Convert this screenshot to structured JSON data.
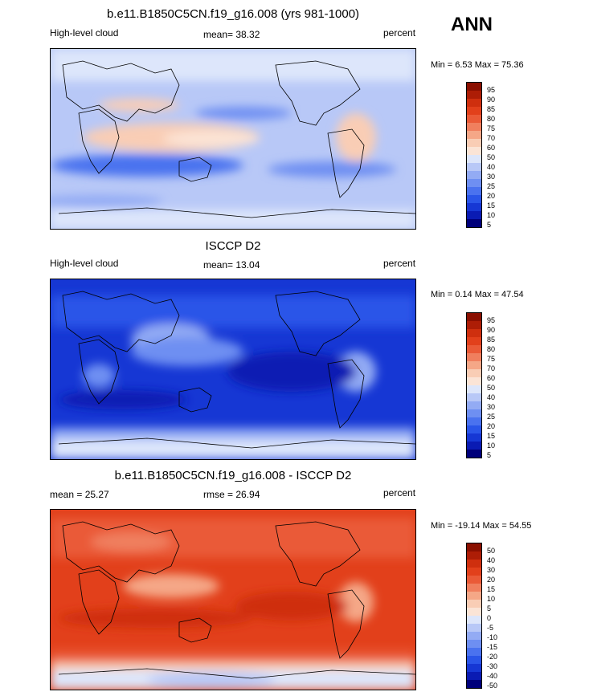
{
  "season": "ANN",
  "colors": {
    "abs_palette": [
      "#00007a",
      "#0a1bb3",
      "#1637d4",
      "#2a55e8",
      "#4a72ef",
      "#6e8ff2",
      "#93abf4",
      "#b8c8f7",
      "#dde6fb",
      "#fbe4d6",
      "#f9cdb5",
      "#f5a787",
      "#f07f5e",
      "#ea5a37",
      "#e2401b",
      "#cf2f0e",
      "#ad1d06",
      "#8a0f00"
    ],
    "diff_palette": [
      "#00007a",
      "#0a1bb3",
      "#1637d4",
      "#2a55e8",
      "#4a72ef",
      "#6e8ff2",
      "#93abf4",
      "#b8c8f7",
      "#dde6fb",
      "#fbe4d6",
      "#f9cdb5",
      "#f5a787",
      "#f07f5e",
      "#ea5a37",
      "#e2401b",
      "#cf2f0e",
      "#ad1d06",
      "#8a0f00"
    ]
  },
  "panels": [
    {
      "title": "b.e11.B1850C5CN.f19_g16.008 (yrs 981-1000)",
      "left_label": "High-level cloud",
      "mean_label": "mean=  38.32",
      "right_label": "percent",
      "minmax": "Min =   6.53 Max =  75.36",
      "levels": [
        "95",
        "90",
        "85",
        "80",
        "75",
        "70",
        "60",
        "50",
        "40",
        "30",
        "25",
        "20",
        "15",
        "10",
        "5"
      ]
    },
    {
      "title": "ISCCP D2",
      "left_label": "High-level cloud",
      "mean_label": "mean=  13.04",
      "right_label": "percent",
      "minmax": "Min =   0.14 Max =  47.54",
      "levels": [
        "95",
        "90",
        "85",
        "80",
        "75",
        "70",
        "60",
        "50",
        "40",
        "30",
        "25",
        "20",
        "15",
        "10",
        "5"
      ]
    },
    {
      "title": "b.e11.B1850C5CN.f19_g16.008 - ISCCP D2",
      "left_label": "mean =  25.27",
      "mean_label": "rmse =  26.94",
      "right_label": "percent",
      "minmax": "Min = -19.14 Max =  54.55",
      "levels": [
        "50",
        "40",
        "30",
        "20",
        "15",
        "10",
        "5",
        "0",
        "-5",
        "-10",
        "-15",
        "-20",
        "-30",
        "-40",
        "-50"
      ]
    }
  ],
  "chart_data": [
    {
      "type": "heatmap",
      "title": "b.e11.B1850C5CN.f19_g16.008 (yrs 981-1000)",
      "variable": "High-level cloud",
      "units": "percent",
      "mean": 38.32,
      "min": 6.53,
      "max": 75.36,
      "contour_levels": [
        5,
        10,
        15,
        20,
        25,
        30,
        40,
        50,
        60,
        70,
        75,
        80,
        85,
        90,
        95
      ]
    },
    {
      "type": "heatmap",
      "title": "ISCCP D2",
      "variable": "High-level cloud",
      "units": "percent",
      "mean": 13.04,
      "min": 0.14,
      "max": 47.54,
      "contour_levels": [
        5,
        10,
        15,
        20,
        25,
        30,
        40,
        50,
        60,
        70,
        75,
        80,
        85,
        90,
        95
      ]
    },
    {
      "type": "heatmap",
      "title": "b.e11.B1850C5CN.f19_g16.008 - ISCCP D2",
      "units": "percent",
      "mean": 25.27,
      "rmse": 26.94,
      "min": -19.14,
      "max": 54.55,
      "contour_levels": [
        -50,
        -40,
        -30,
        -20,
        -15,
        -10,
        -5,
        0,
        5,
        10,
        15,
        20,
        30,
        40,
        50
      ]
    }
  ]
}
